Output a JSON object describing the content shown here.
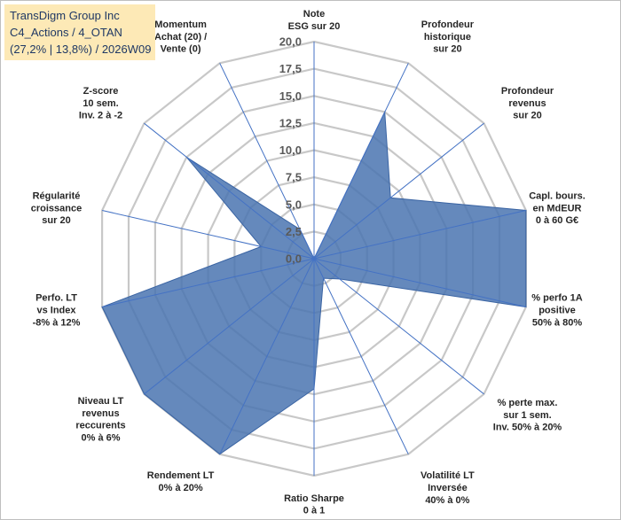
{
  "info_box": {
    "line1": "TransDigm Group Inc",
    "line2": "C4_Actions / 4_OTAN",
    "line3": "(27,2% | 13,8%) / 2026W09"
  },
  "chart_data": {
    "type": "radar",
    "title": "",
    "rmin": 0,
    "rmax": 20,
    "tick_step": 2.5,
    "tick_labels": [
      "0,0",
      "2,5",
      "5,0",
      "7,5",
      "10,0",
      "12,5",
      "15,0",
      "17,5",
      "20,0"
    ],
    "grid": true,
    "colors": {
      "fill": "#4a74b0",
      "grid": "#c8c8c8",
      "spoke": "#4472c4"
    },
    "axes": [
      {
        "label": [
          "Note",
          "ESG sur 20"
        ],
        "value": 0
      },
      {
        "label": [
          "Profondeur",
          "historique",
          "sur 20"
        ],
        "value": 15
      },
      {
        "label": [
          "Profondeur",
          "revenus",
          "sur 20"
        ],
        "value": 9
      },
      {
        "label": [
          "Capl. bours.",
          "en MdEUR",
          "0 à 60 G€"
        ],
        "value": 20
      },
      {
        "label": [
          "% perfo 1A",
          "positive",
          "50% à 80%"
        ],
        "value": 20
      },
      {
        "label": [
          "% perte max.",
          "sur 1 sem.",
          "Inv. 50% à 20%"
        ],
        "value": 3
      },
      {
        "label": [
          "Volatilité LT",
          "Inversée",
          "40% à 0%"
        ],
        "value": 2
      },
      {
        "label": [
          "Ratio Sharpe",
          "0 à 1"
        ],
        "value": 12
      },
      {
        "label": [
          "Rendement LT",
          "0% à 20%"
        ],
        "value": 20
      },
      {
        "label": [
          "Niveau LT",
          "revenus",
          "reccurents",
          "0% à 6%"
        ],
        "value": 20
      },
      {
        "label": [
          "Perfo. LT",
          "vs Index",
          "-8% à 12%"
        ],
        "value": 20
      },
      {
        "label": [
          "Régularité",
          "croissance",
          "sur 20"
        ],
        "value": 5
      },
      {
        "label": [
          "Z-score",
          "10 sem.",
          "Inv. 2 à -2"
        ],
        "value": 15
      },
      {
        "label": [
          "Momentum",
          "Achat (20) /",
          "Vente (0)"
        ],
        "value": 3
      }
    ]
  }
}
